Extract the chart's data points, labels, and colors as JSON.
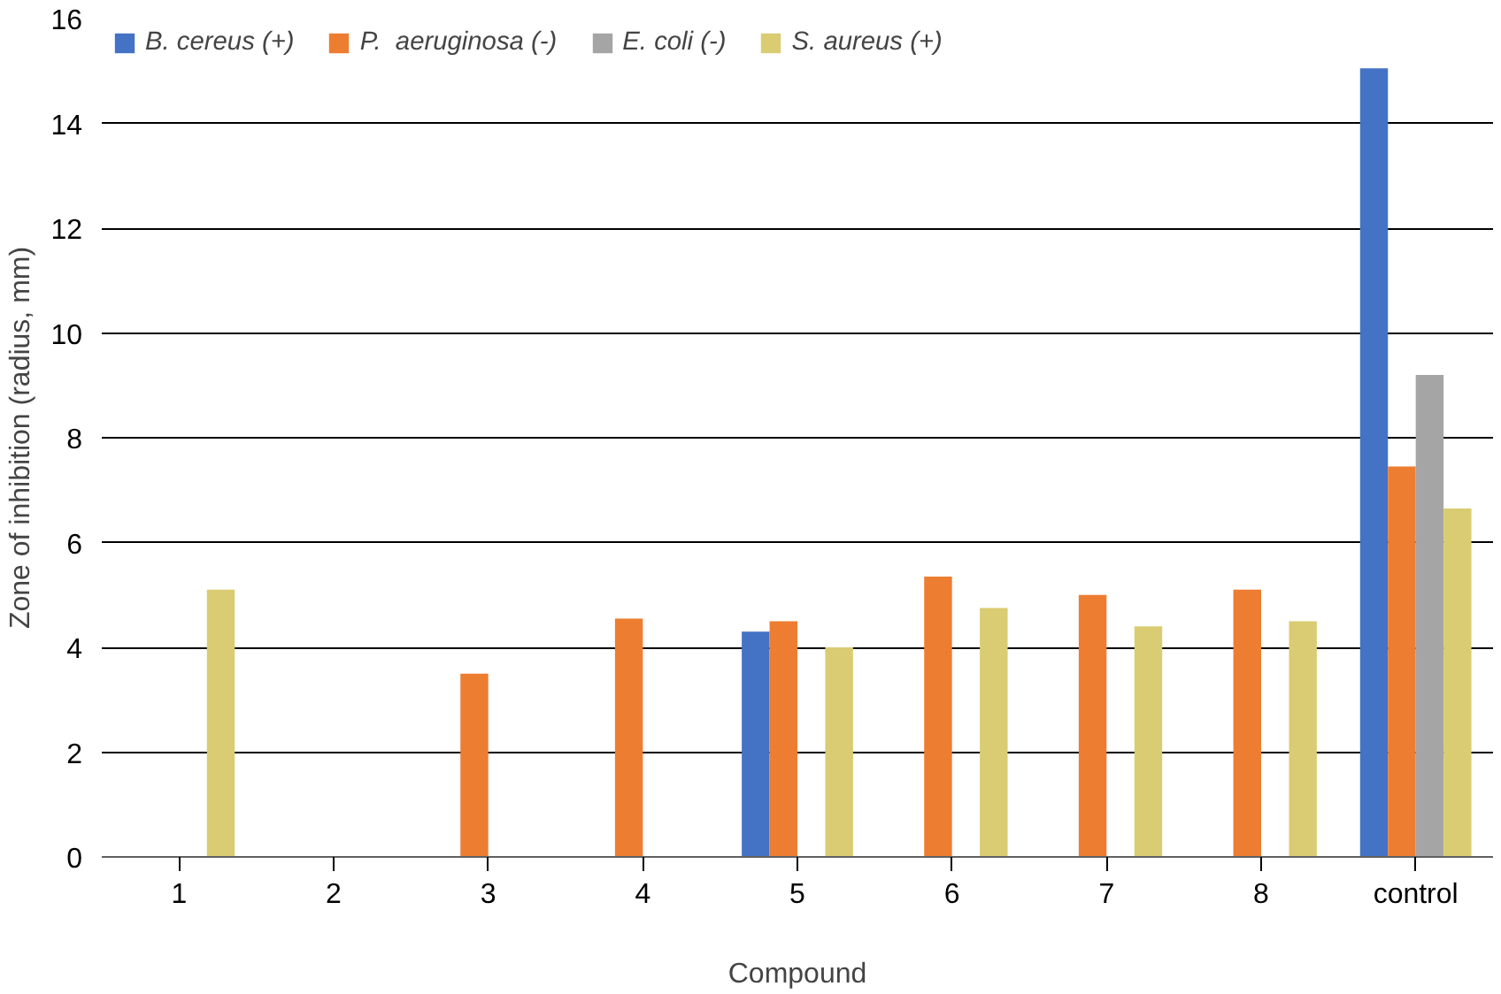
{
  "chart_data": {
    "type": "bar",
    "xlabel": "Compound",
    "ylabel": "Zone of inhibition (radius, mm)",
    "categories": [
      "1",
      "2",
      "3",
      "4",
      "5",
      "6",
      "7",
      "8",
      "control"
    ],
    "series": [
      {
        "name": "B. cereus (+)",
        "color": "#4472c4",
        "values": [
          null,
          null,
          null,
          null,
          4.3,
          null,
          null,
          null,
          15.05
        ]
      },
      {
        "name": "P.  aeruginosa (-)",
        "color": "#ed7d31",
        "values": [
          null,
          null,
          3.5,
          4.55,
          4.5,
          5.35,
          5.0,
          5.1,
          7.45
        ]
      },
      {
        "name": "E. coli (-)",
        "color": "#a5a5a5",
        "values": [
          null,
          null,
          null,
          null,
          null,
          null,
          null,
          null,
          9.2
        ]
      },
      {
        "name": "S. aureus (+)",
        "color": "#d9cc73",
        "values": [
          5.1,
          null,
          null,
          null,
          4.0,
          4.75,
          4.4,
          4.5,
          6.65
        ]
      }
    ],
    "ylim": [
      0,
      16
    ],
    "yticks": [
      0,
      2,
      4,
      6,
      8,
      10,
      12,
      14,
      16
    ],
    "grid": "y",
    "legend": "top left"
  }
}
